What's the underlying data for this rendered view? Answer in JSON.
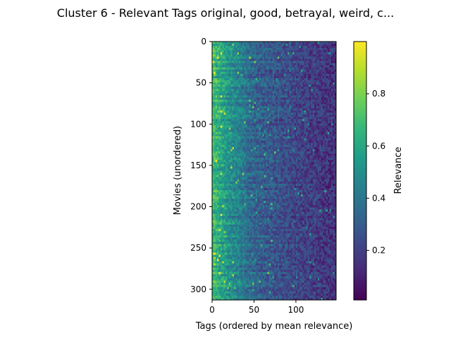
{
  "chart_data": {
    "type": "heatmap",
    "title": "Cluster 6 - Relevant Tags original, good, betrayal, weird, c...",
    "xlabel": "Tags (ordered by mean relevance)",
    "ylabel": "Movies (unordered)",
    "x_range": [
      0,
      148
    ],
    "y_range": [
      0,
      313
    ],
    "x_ticks": [
      0,
      50,
      100
    ],
    "y_ticks": [
      0,
      50,
      100,
      150,
      200,
      250,
      300
    ],
    "y_inverted": true,
    "colorbar": {
      "label": "Relevance",
      "colormap": "viridis",
      "range": [
        0.01,
        1.0
      ],
      "ticks": [
        0.2,
        0.4,
        0.6,
        0.8
      ]
    },
    "profile_note": "relevance decreases with tag rank",
    "tag_profile": [
      {
        "rank": 0,
        "mean_relevance": 0.7
      },
      {
        "rank": 20,
        "mean_relevance": 0.52
      },
      {
        "rank": 50,
        "mean_relevance": 0.33
      },
      {
        "rank": 100,
        "mean_relevance": 0.22
      },
      {
        "rank": 148,
        "mean_relevance": 0.15
      }
    ]
  },
  "palette": {
    "viridis": [
      "#440154",
      "#482878",
      "#3e4989",
      "#31688e",
      "#26828e",
      "#1f9e89",
      "#35b779",
      "#6ece58",
      "#b5de2b",
      "#fde725"
    ]
  }
}
